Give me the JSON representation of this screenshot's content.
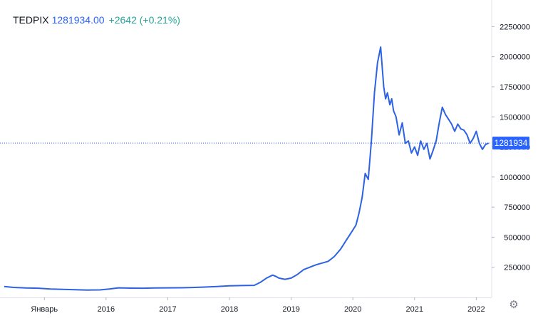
{
  "legend": {
    "symbol": "TEDPIX",
    "last_value": "1281934.00",
    "change": "+2642 (+0.21%)"
  },
  "price_tag": "1281934",
  "settings_icon": "gear-icon",
  "colors": {
    "line": "#2d62e3",
    "price_tag_bg": "#2962ff",
    "change_positive": "#26a69a",
    "axis_text": "#131722",
    "axis_line": "#e0e3eb"
  },
  "chart_data": {
    "type": "line",
    "title": "",
    "xlabel": "",
    "ylabel": "",
    "grid": false,
    "ylim": [
      0,
      2400000
    ],
    "xlim": [
      2014.35,
      2022.25
    ],
    "y_ticks": [
      250000,
      500000,
      750000,
      1000000,
      1250000,
      1500000,
      1750000,
      2000000,
      2250000
    ],
    "y_tick_labels": [
      "250000",
      "500000",
      "750000",
      "1000000",
      "1250000",
      "1500000",
      "1750000",
      "2000000",
      "2250000"
    ],
    "x_ticks": [
      2015.0,
      2016.0,
      2017.0,
      2018.0,
      2019.0,
      2020.0,
      2021.0,
      2022.0
    ],
    "x_tick_labels": [
      "Январь",
      "2016",
      "2017",
      "2018",
      "2019",
      "2020",
      "2021",
      "2022"
    ],
    "last_value": 1281934,
    "series": [
      {
        "x": [
          2014.35,
          2014.5,
          2014.7,
          2014.9,
          2015.1,
          2015.3,
          2015.5,
          2015.7,
          2015.9,
          2016.05,
          2016.2,
          2016.4,
          2016.6,
          2016.8,
          2017.0,
          2017.2,
          2017.4,
          2017.6,
          2017.8,
          2018.0,
          2018.2,
          2018.4,
          2018.5,
          2018.6,
          2018.7,
          2018.75,
          2018.8,
          2018.9,
          2019.0,
          2019.1,
          2019.2,
          2019.3,
          2019.4,
          2019.5,
          2019.6,
          2019.7,
          2019.8,
          2019.9,
          2020.0,
          2020.05,
          2020.1,
          2020.15,
          2020.2,
          2020.25,
          2020.3,
          2020.35,
          2020.4,
          2020.45,
          2020.5,
          2020.53,
          2020.56,
          2020.6,
          2020.63,
          2020.66,
          2020.7,
          2020.75,
          2020.8,
          2020.85,
          2020.9,
          2020.95,
          2021.0,
          2021.05,
          2021.1,
          2021.15,
          2021.2,
          2021.25,
          2021.3,
          2021.35,
          2021.4,
          2021.45,
          2021.5,
          2021.55,
          2021.6,
          2021.65,
          2021.7,
          2021.75,
          2021.8,
          2021.85,
          2021.9,
          2021.95,
          2022.0,
          2022.05,
          2022.1,
          2022.15,
          2022.2
        ],
        "y": [
          90000,
          83000,
          78000,
          76000,
          70000,
          66000,
          64000,
          61000,
          62000,
          70000,
          79000,
          77000,
          76000,
          78000,
          79000,
          80000,
          82000,
          86000,
          90000,
          96000,
          98000,
          100000,
          125000,
          160000,
          185000,
          175000,
          160000,
          150000,
          160000,
          190000,
          230000,
          250000,
          270000,
          285000,
          300000,
          340000,
          400000,
          480000,
          560000,
          600000,
          700000,
          830000,
          1030000,
          980000,
          1300000,
          1700000,
          1950000,
          2080000,
          1750000,
          1650000,
          1700000,
          1600000,
          1650000,
          1550000,
          1500000,
          1350000,
          1450000,
          1280000,
          1300000,
          1200000,
          1250000,
          1180000,
          1300000,
          1230000,
          1280000,
          1150000,
          1220000,
          1300000,
          1450000,
          1580000,
          1520000,
          1480000,
          1440000,
          1380000,
          1440000,
          1400000,
          1390000,
          1350000,
          1280000,
          1320000,
          1380000,
          1280000,
          1230000,
          1270000,
          1281934
        ]
      }
    ]
  }
}
